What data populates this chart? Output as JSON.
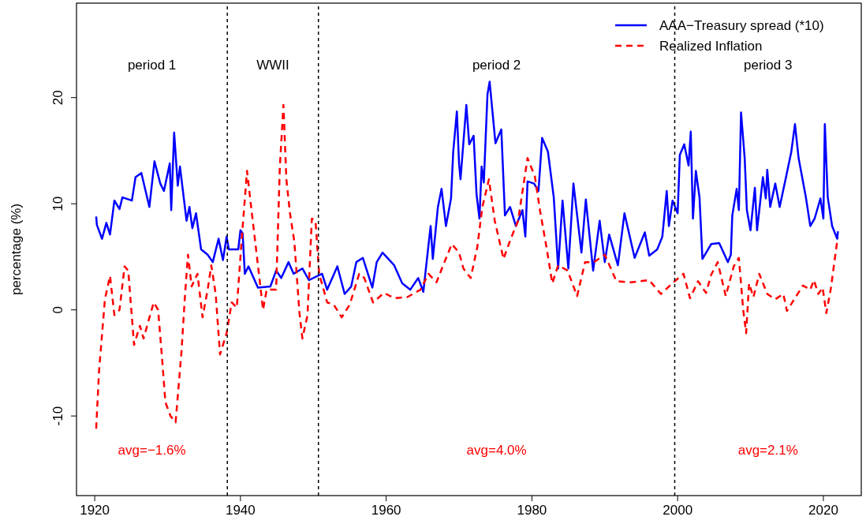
{
  "chart_data": {
    "type": "line",
    "ylabel": "percentage (%)",
    "xlim": [
      1917.5,
      2025.2
    ],
    "ylim": [
      -17.5,
      28.9
    ],
    "xticks": [
      1920,
      1940,
      1960,
      1980,
      2000,
      2020
    ],
    "yticks": [
      -10,
      0,
      10,
      20
    ],
    "grid": false,
    "legend": "top right",
    "series": [
      {
        "name": "AAA−Treasury spread (*10)",
        "color": "#0000ff",
        "line_style": "solid",
        "x": [
          1920.2,
          1920.3,
          1921.0,
          1921.6,
          1922.1,
          1922.7,
          1923.4,
          1923.8,
          1925.1,
          1925.6,
          1926.4,
          1927.5,
          1928.2,
          1929.0,
          1929.5,
          1930.3,
          1930.5,
          1930.9,
          1931.4,
          1931.7,
          1932.6,
          1933.0,
          1933.4,
          1933.9,
          1934.6,
          1935.5,
          1936.2,
          1937.0,
          1937.6,
          1938.1,
          1938.4,
          1939.7,
          1940.0,
          1940.3,
          1940.6,
          1941.1,
          1942.4,
          1944.1,
          1944.9,
          1945.6,
          1946.6,
          1947.3,
          1948.5,
          1949.4,
          1951.2,
          1951.9,
          1953.3,
          1954.3,
          1955.2,
          1955.9,
          1956.8,
          1958.1,
          1958.7,
          1959.5,
          1961.1,
          1962.2,
          1963.3,
          1964.4,
          1965.1,
          1965.5,
          1966.1,
          1966.4,
          1967.1,
          1967.6,
          1968.2,
          1968.9,
          1969.2,
          1969.7,
          1970.0,
          1970.2,
          1971.0,
          1971.4,
          1972.0,
          1972.4,
          1972.8,
          1973.1,
          1973.4,
          1973.9,
          1974.2,
          1974.5,
          1975.0,
          1975.8,
          1976.3,
          1977.0,
          1977.8,
          1978.7,
          1979.1,
          1979.4,
          1980.3,
          1980.9,
          1981.4,
          1982.2,
          1983.0,
          1983.6,
          1984.2,
          1985.0,
          1985.7,
          1986.8,
          1987.4,
          1988.4,
          1989.3,
          1990.0,
          1990.6,
          1991.8,
          1992.7,
          1994.1,
          1995.5,
          1996.1,
          1997.2,
          1997.9,
          1998.5,
          1998.8,
          1999.3,
          2000.0,
          2000.3,
          2000.9,
          2001.5,
          2001.8,
          2002.1,
          2002.5,
          2003.0,
          2003.4,
          2004.6,
          2005.7,
          2006.9,
          2007.3,
          2007.5,
          2008.1,
          2008.4,
          2008.7,
          2009.2,
          2009.5,
          2010.0,
          2010.6,
          2010.9,
          2011.7,
          2012.1,
          2012.3,
          2012.7,
          2013.4,
          2014.0,
          2014.9,
          2015.6,
          2016.1,
          2016.6,
          2017.6,
          2018.2,
          2018.8,
          2019.6,
          2020.0,
          2020.2,
          2020.6,
          2021.2,
          2021.9,
          2022.0
        ],
        "values": [
          8.8,
          8.0,
          6.7,
          8.2,
          7.1,
          10.3,
          9.5,
          10.6,
          10.3,
          12.5,
          12.9,
          9.7,
          14.0,
          11.9,
          11.2,
          13.8,
          9.4,
          16.7,
          11.7,
          13.5,
          8.4,
          9.7,
          7.7,
          9.1,
          5.7,
          5.2,
          4.5,
          6.7,
          4.7,
          6.9,
          5.7,
          5.7,
          7.5,
          7.2,
          3.4,
          4.1,
          2.1,
          2.2,
          3.7,
          3.0,
          4.5,
          3.4,
          3.9,
          2.8,
          3.4,
          1.9,
          4.1,
          1.5,
          2.2,
          4.5,
          4.9,
          2.1,
          4.5,
          5.4,
          4.2,
          2.5,
          1.9,
          3.0,
          1.7,
          4.2,
          7.9,
          4.8,
          9.7,
          11.4,
          7.9,
          10.5,
          14.9,
          18.7,
          13.8,
          12.3,
          19.3,
          15.6,
          16.4,
          10.9,
          8.6,
          13.5,
          12.0,
          20.3,
          21.5,
          19.3,
          15.7,
          17.0,
          8.9,
          9.7,
          7.9,
          9.4,
          6.9,
          12.1,
          11.9,
          11.2,
          16.2,
          14.9,
          10.6,
          3.9,
          10.3,
          3.9,
          11.9,
          5.4,
          10.4,
          3.7,
          8.4,
          4.5,
          7.1,
          4.2,
          9.1,
          4.9,
          7.3,
          5.1,
          5.7,
          6.9,
          11.2,
          7.9,
          10.3,
          9.1,
          14.6,
          15.6,
          13.6,
          16.8,
          8.6,
          13.1,
          10.6,
          4.8,
          6.2,
          6.3,
          4.5,
          5.2,
          8.9,
          11.4,
          9.4,
          18.6,
          14.3,
          9.4,
          7.5,
          11.5,
          7.5,
          12.5,
          10.5,
          13.2,
          9.7,
          11.9,
          9.7,
          12.6,
          14.9,
          17.5,
          14.3,
          10.6,
          7.9,
          8.6,
          10.5,
          8.6,
          17.5,
          10.6,
          7.9,
          6.7,
          7.4
        ]
      },
      {
        "name": "Realized Inflation",
        "color": "#ff0000",
        "line_style": "dashed",
        "x": [
          1920.2,
          1920.6,
          1921.4,
          1922.1,
          1922.7,
          1923.4,
          1924.1,
          1924.6,
          1925.4,
          1926.2,
          1926.7,
          1927.6,
          1928.1,
          1928.7,
          1929.2,
          1929.7,
          1930.4,
          1931.1,
          1931.9,
          1932.4,
          1932.8,
          1933.3,
          1934.1,
          1934.8,
          1935.5,
          1936.0,
          1936.6,
          1937.2,
          1938.1,
          1938.8,
          1939.5,
          1940.2,
          1940.9,
          1941.6,
          1942.4,
          1943.1,
          1943.6,
          1944.9,
          1945.4,
          1945.9,
          1946.3,
          1946.8,
          1947.4,
          1948.1,
          1948.5,
          1949.2,
          1949.8,
          1950.3,
          1950.8,
          1951.9,
          1952.8,
          1953.9,
          1955.0,
          1956.3,
          1957.0,
          1958.2,
          1959.7,
          1961.1,
          1962.9,
          1964.7,
          1965.8,
          1966.9,
          1968.0,
          1969.0,
          1970.0,
          1970.6,
          1971.6,
          1972.5,
          1973.2,
          1974.1,
          1974.9,
          1976.1,
          1977.1,
          1978.1,
          1979.4,
          1980.4,
          1981.1,
          1982.0,
          1982.8,
          1983.6,
          1984.9,
          1986.2,
          1987.3,
          1988.5,
          1990.0,
          1991.6,
          1993.6,
          1996.1,
          1997.7,
          1999.6,
          2000.8,
          2001.7,
          2002.8,
          2003.9,
          2004.6,
          2005.5,
          2006.6,
          2007.7,
          2008.4,
          2009.0,
          2009.4,
          2009.8,
          2010.4,
          2011.2,
          2012.3,
          2013.4,
          2014.5,
          2015.0,
          2016.0,
          2017.2,
          2018.2,
          2018.7,
          2019.3,
          2019.9,
          2020.4,
          2021.0,
          2021.9
        ],
        "values": [
          -11.2,
          -5.7,
          1.0,
          3.2,
          -0.5,
          0,
          4.1,
          3.7,
          -3.3,
          -1.5,
          -2.7,
          -0.5,
          0.7,
          0,
          -4.2,
          -8.7,
          -10.0,
          -10.6,
          -4.0,
          1.5,
          5.2,
          2.2,
          3.4,
          -0.7,
          1.9,
          4.2,
          1.5,
          -4.2,
          -2.2,
          0.7,
          0.2,
          6.9,
          13.1,
          8.9,
          4.2,
          0,
          1.9,
          1.9,
          13.4,
          19.3,
          12.3,
          9.1,
          6.4,
          -0.3,
          -2.7,
          -0.5,
          8.6,
          8.4,
          3.4,
          0.7,
          0.5,
          -0.7,
          0.5,
          3.4,
          3.0,
          0.7,
          1.6,
          1.1,
          1.2,
          1.9,
          3.4,
          2.6,
          4.5,
          6.2,
          5.4,
          3.9,
          3.0,
          5.9,
          9.7,
          12.3,
          8.4,
          4.8,
          6.7,
          8.4,
          14.3,
          12.6,
          9.4,
          5.9,
          2.5,
          4.2,
          3.7,
          1.3,
          4.5,
          4.5,
          5.2,
          2.7,
          2.6,
          2.8,
          1.5,
          2.7,
          3.4,
          1.1,
          2.7,
          1.6,
          3.3,
          4.5,
          1.3,
          4.1,
          4.9,
          0,
          -2.2,
          2.5,
          1.2,
          3.4,
          1.5,
          1.0,
          1.5,
          -0.1,
          1.0,
          2.3,
          1.9,
          2.8,
          1.5,
          2.1,
          -0.3,
          1.9,
          6.5
        ]
      }
    ],
    "ref_lines": [
      {
        "axis": "x",
        "value": 1938.2,
        "color": "#000000",
        "line_style": "dotted"
      },
      {
        "axis": "x",
        "value": 1950.7,
        "color": "#000000",
        "line_style": "dotted"
      },
      {
        "axis": "x",
        "value": 1999.6,
        "color": "#000000",
        "line_style": "dotted"
      }
    ],
    "annotations": [
      "period 1",
      "WWII",
      "period 2",
      "period 3",
      "avg=−1.6%",
      "avg=4.0%",
      "avg=2.1%"
    ]
  }
}
